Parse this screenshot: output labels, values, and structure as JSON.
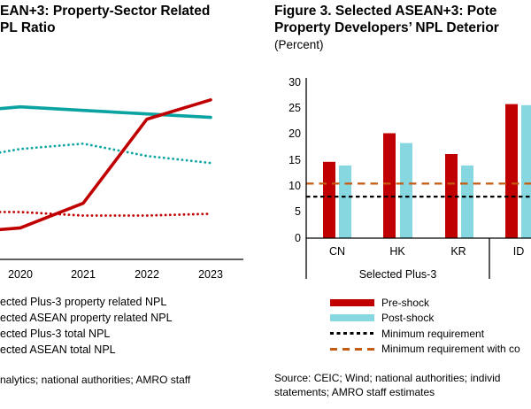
{
  "left_figure": {
    "title_line1": "EAN+3: Property-Sector Related",
    "title_line2": "PL Ratio",
    "legend": [
      "ected Plus-3 property related NPL",
      "ected ASEAN property related NPL",
      "ected Plus-3 total NPL",
      "ected ASEAN total NPL"
    ],
    "source": "nalytics; national authorities; AMRO staff"
  },
  "right_figure": {
    "title_line1": "Figure 3. Selected ASEAN+3: Pote",
    "title_line2": "Property Developers’ NPL Deterior",
    "subtitle": "(Percent)",
    "group_label": "Selected Plus-3",
    "legend": [
      {
        "label": "Pre-shock",
        "swatch": "bar",
        "color": "#C00000"
      },
      {
        "label": "Post-shock",
        "swatch": "bar",
        "color": "#87D7E1"
      },
      {
        "label": "Minimum requirement",
        "swatch": "dash-tight",
        "color": "#000000"
      },
      {
        "label": "Minimum requirement with co",
        "swatch": "dash-wide",
        "color": "#C55A11"
      }
    ],
    "source_line1": "Source: CEIC; Wind; national authorities; individ",
    "source_line2": "statements; AMRO staff estimates"
  },
  "colors": {
    "red": "#C00000",
    "teal": "#0BA3A1",
    "light_blue": "#87D7E1",
    "orange": "#C55A11",
    "axis": "#000000"
  },
  "chart_data": [
    {
      "type": "line",
      "title": "EAN+3: Property-Sector Related PL Ratio",
      "x_labels": [
        "2020",
        "2021",
        "2022",
        "2023"
      ],
      "ylim": [
        0,
        10
      ],
      "grid": false,
      "legend_position": "below",
      "series": [
        {
          "name": "ected Plus-3 property related NPL",
          "style": "solid",
          "color": "#C00000",
          "edge_value": 1.7,
          "values": [
            1.8,
            3.2,
            8.0,
            9.1
          ]
        },
        {
          "name": "ected ASEAN property related NPL",
          "style": "solid",
          "color": "#0BA3A1",
          "edge_value": 8.6,
          "values": [
            8.7,
            8.5,
            8.3,
            8.1
          ]
        },
        {
          "name": "ected Plus-3 total NPL",
          "style": "dotted",
          "color": "#C00000",
          "edge_value": 2.7,
          "values": [
            2.7,
            2.5,
            2.5,
            2.6
          ]
        },
        {
          "name": "ected ASEAN total NPL",
          "style": "dotted",
          "color": "#0BA3A1",
          "edge_value": 6.1,
          "values": [
            6.3,
            6.6,
            5.9,
            5.5
          ]
        }
      ]
    },
    {
      "type": "bar",
      "title": "Figure 3. Selected ASEAN+3: Pote Property Developers’ NPL Deterior (Percent)",
      "categories": [
        "CN",
        "HK",
        "KR",
        "ID"
      ],
      "group_labels": [
        "Selected Plus-3"
      ],
      "ylim": [
        0,
        30
      ],
      "yticks": [
        30,
        25,
        20,
        15,
        10,
        5,
        0
      ],
      "grid": false,
      "legend_position": "below",
      "series": [
        {
          "name": "Pre-shock",
          "color": "#C00000",
          "values": [
            14.7,
            20.2,
            16.2,
            25.8
          ]
        },
        {
          "name": "Post-shock",
          "color": "#87D7E1",
          "values": [
            14.0,
            18.3,
            14.0,
            25.6
          ]
        }
      ],
      "hlines": [
        {
          "name": "Minimum requirement",
          "value": 8.0,
          "color": "#000000",
          "dash": "tight"
        },
        {
          "name": "Minimum requirement with co",
          "value": 10.5,
          "color": "#C55A11",
          "dash": "wide"
        }
      ]
    }
  ]
}
